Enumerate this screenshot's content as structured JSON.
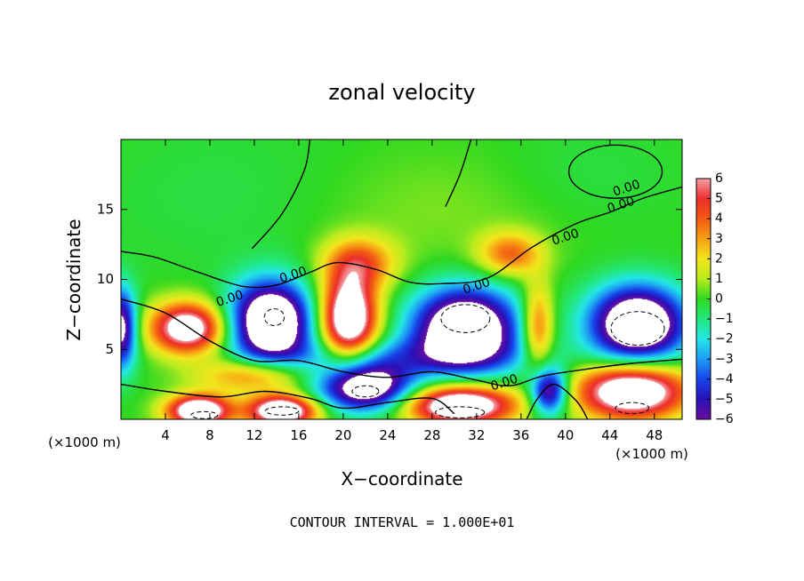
{
  "chart_data": {
    "type": "heatmap",
    "title": "zonal velocity",
    "xlabel": "X−coordinate",
    "ylabel": "Z−coordinate",
    "x_unit_left": "(×1000 m)",
    "x_unit_right": "(×1000 m)",
    "xlim": [
      0,
      50.5
    ],
    "ylim": [
      0,
      20
    ],
    "x_ticks": [
      4,
      8,
      12,
      16,
      20,
      24,
      28,
      32,
      36,
      40,
      44,
      48
    ],
    "y_ticks": [
      5,
      10,
      15
    ],
    "color_range": [
      -6,
      6
    ],
    "colorbar_ticks": [
      "6",
      "5",
      "4",
      "3",
      "2",
      "1",
      "0",
      "−1",
      "−2",
      "−3",
      "−4",
      "−5",
      "−6"
    ],
    "colorbar_colors": [
      "#f4a0a4",
      "#ec2d2d",
      "#f25a12",
      "#f8a015",
      "#f2e61c",
      "#b8ec1e",
      "#2fd820",
      "#22e87e",
      "#22e6e6",
      "#1e9cf4",
      "#1644ea",
      "#2a10b8",
      "#6a0ea0"
    ],
    "background_color": "#62d84c",
    "saturation_color": "#ffffff",
    "contour_level_label": "0.00",
    "footnote": "CONTOUR INTERVAL = 1.000E+01",
    "field_features": [
      {
        "center": [
          6.0,
          6.5
        ],
        "sigma": [
          2.4,
          1.3
        ],
        "amplitude": 8.0
      },
      {
        "center": [
          12.0,
          3.2
        ],
        "sigma": [
          3.5,
          0.9
        ],
        "amplitude": 4.0
      },
      {
        "center": [
          7.0,
          0.6
        ],
        "sigma": [
          2.0,
          0.8
        ],
        "amplitude": 9.0
      },
      {
        "center": [
          14.5,
          0.6
        ],
        "sigma": [
          2.2,
          0.8
        ],
        "amplitude": 9.0
      },
      {
        "center": [
          30.5,
          1.0
        ],
        "sigma": [
          3.5,
          1.0
        ],
        "amplitude": 9.0
      },
      {
        "center": [
          46.0,
          2.0
        ],
        "sigma": [
          3.5,
          1.4
        ],
        "amplitude": 9.0
      },
      {
        "center": [
          37.5,
          6.5
        ],
        "sigma": [
          1.0,
          2.2
        ],
        "amplitude": 4.5
      },
      {
        "center": [
          21.5,
          11.2
        ],
        "sigma": [
          2.3,
          1.3
        ],
        "amplitude": 3.8
      },
      {
        "center": [
          35.0,
          11.8
        ],
        "sigma": [
          2.0,
          1.1
        ],
        "amplitude": 3.8
      },
      {
        "center": [
          20.5,
          7.2
        ],
        "sigma": [
          1.8,
          2.2
        ],
        "amplitude": 9.0
      },
      {
        "center": [
          13.5,
          7.0
        ],
        "sigma": [
          2.6,
          2.0
        ],
        "amplitude": -9.5
      },
      {
        "center": [
          31.0,
          6.5
        ],
        "sigma": [
          3.3,
          2.0
        ],
        "amplitude": -9.5
      },
      {
        "center": [
          46.5,
          6.8
        ],
        "sigma": [
          3.0,
          1.9
        ],
        "amplitude": -9.5
      },
      {
        "center": [
          22.0,
          2.3
        ],
        "sigma": [
          3.0,
          1.2
        ],
        "amplitude": -8.5
      },
      {
        "center": [
          0.0,
          6.5
        ],
        "sigma": [
          1.0,
          2.0
        ],
        "amplitude": -7.0
      },
      {
        "center": [
          38.5,
          2.0
        ],
        "sigma": [
          1.2,
          1.2
        ],
        "amplitude": -7.0
      },
      {
        "center": [
          24.0,
          4.5
        ],
        "sigma": [
          9.0,
          1.0
        ],
        "amplitude": -2.5
      },
      {
        "center": [
          10.0,
          16.0
        ],
        "sigma": [
          9.0,
          4.0
        ],
        "amplitude": -0.4
      },
      {
        "center": [
          42.0,
          17.5
        ],
        "sigma": [
          6.0,
          2.5
        ],
        "amplitude": -0.4
      },
      {
        "center": [
          28.0,
          15.0
        ],
        "sigma": [
          8.0,
          3.0
        ],
        "amplitude": 0.6
      }
    ],
    "zero_contours": [
      [
        [
          0,
          12
        ],
        [
          3,
          11.6
        ],
        [
          7,
          10.5
        ],
        [
          11,
          9.5
        ],
        [
          14,
          9.6
        ],
        [
          17,
          10.5
        ],
        [
          19.5,
          11.2
        ],
        [
          23,
          10.7
        ],
        [
          26,
          9.8
        ],
        [
          29,
          9.7
        ],
        [
          33,
          10.1
        ],
        [
          37,
          12.3
        ],
        [
          41,
          14.0
        ],
        [
          44,
          14.8
        ],
        [
          47,
          15.8
        ],
        [
          50.5,
          16.6
        ]
      ],
      [
        [
          11.8,
          12.2
        ],
        [
          14.5,
          14.7
        ],
        [
          16.5,
          17.8
        ],
        [
          17,
          20
        ]
      ],
      [
        [
          29.2,
          15.2
        ],
        [
          30.5,
          17.5
        ],
        [
          31.5,
          20
        ]
      ],
      [
        [
          0,
          8.6
        ],
        [
          4,
          7.6
        ],
        [
          8,
          5.6
        ],
        [
          12,
          4.2
        ],
        [
          16,
          4.2
        ],
        [
          20,
          3.4
        ],
        [
          24,
          3.0
        ],
        [
          28,
          3.4
        ],
        [
          32,
          2.8
        ],
        [
          35,
          2.4
        ],
        [
          38,
          3.1
        ],
        [
          42,
          3.6
        ],
        [
          46,
          4.0
        ],
        [
          50.5,
          4.3
        ]
      ],
      [
        [
          0,
          2.5
        ],
        [
          4,
          2.0
        ],
        [
          9,
          1.6
        ],
        [
          13,
          2.0
        ],
        [
          17,
          1.5
        ],
        [
          20,
          0.8
        ],
        [
          24,
          1.2
        ],
        [
          28,
          1.5
        ],
        [
          30,
          0.4
        ]
      ],
      [
        [
          36.5,
          0.0
        ],
        [
          37.5,
          1.5
        ],
        [
          39,
          2.5
        ],
        [
          41,
          1.3
        ],
        [
          42,
          0.0
        ]
      ]
    ],
    "closed_contours": [
      {
        "center": [
          44.5,
          17.7
        ],
        "radii": [
          4.2,
          1.9
        ]
      }
    ],
    "dashed_contours": [
      {
        "center": [
          13.8,
          7.3
        ],
        "radii": [
          0.9,
          0.6
        ]
      },
      {
        "center": [
          31.0,
          7.2
        ],
        "radii": [
          2.2,
          1.0
        ]
      },
      {
        "center": [
          46.5,
          6.5
        ],
        "radii": [
          2.4,
          1.2
        ]
      },
      {
        "center": [
          22.0,
          2.0
        ],
        "radii": [
          1.2,
          0.4
        ]
      },
      {
        "center": [
          14.5,
          0.6
        ],
        "radii": [
          1.5,
          0.3
        ]
      },
      {
        "center": [
          30.5,
          0.5
        ],
        "radii": [
          2.2,
          0.4
        ]
      },
      {
        "center": [
          46.0,
          0.8
        ],
        "radii": [
          1.5,
          0.4
        ]
      },
      {
        "center": [
          7.5,
          0.3
        ],
        "radii": [
          1.2,
          0.25
        ]
      }
    ],
    "contour_labels": [
      {
        "x": 15.5,
        "y": 10.3,
        "text": "0.00"
      },
      {
        "x": 9.8,
        "y": 8.6,
        "text": "0.00"
      },
      {
        "x": 32.0,
        "y": 9.5,
        "text": "0.00"
      },
      {
        "x": 34.5,
        "y": 2.6,
        "text": "0.00"
      },
      {
        "x": 40.0,
        "y": 13.0,
        "text": "0.00"
      },
      {
        "x": 45.0,
        "y": 15.3,
        "text": "0.00"
      },
      {
        "x": 45.5,
        "y": 16.5,
        "text": "0.00"
      }
    ]
  }
}
